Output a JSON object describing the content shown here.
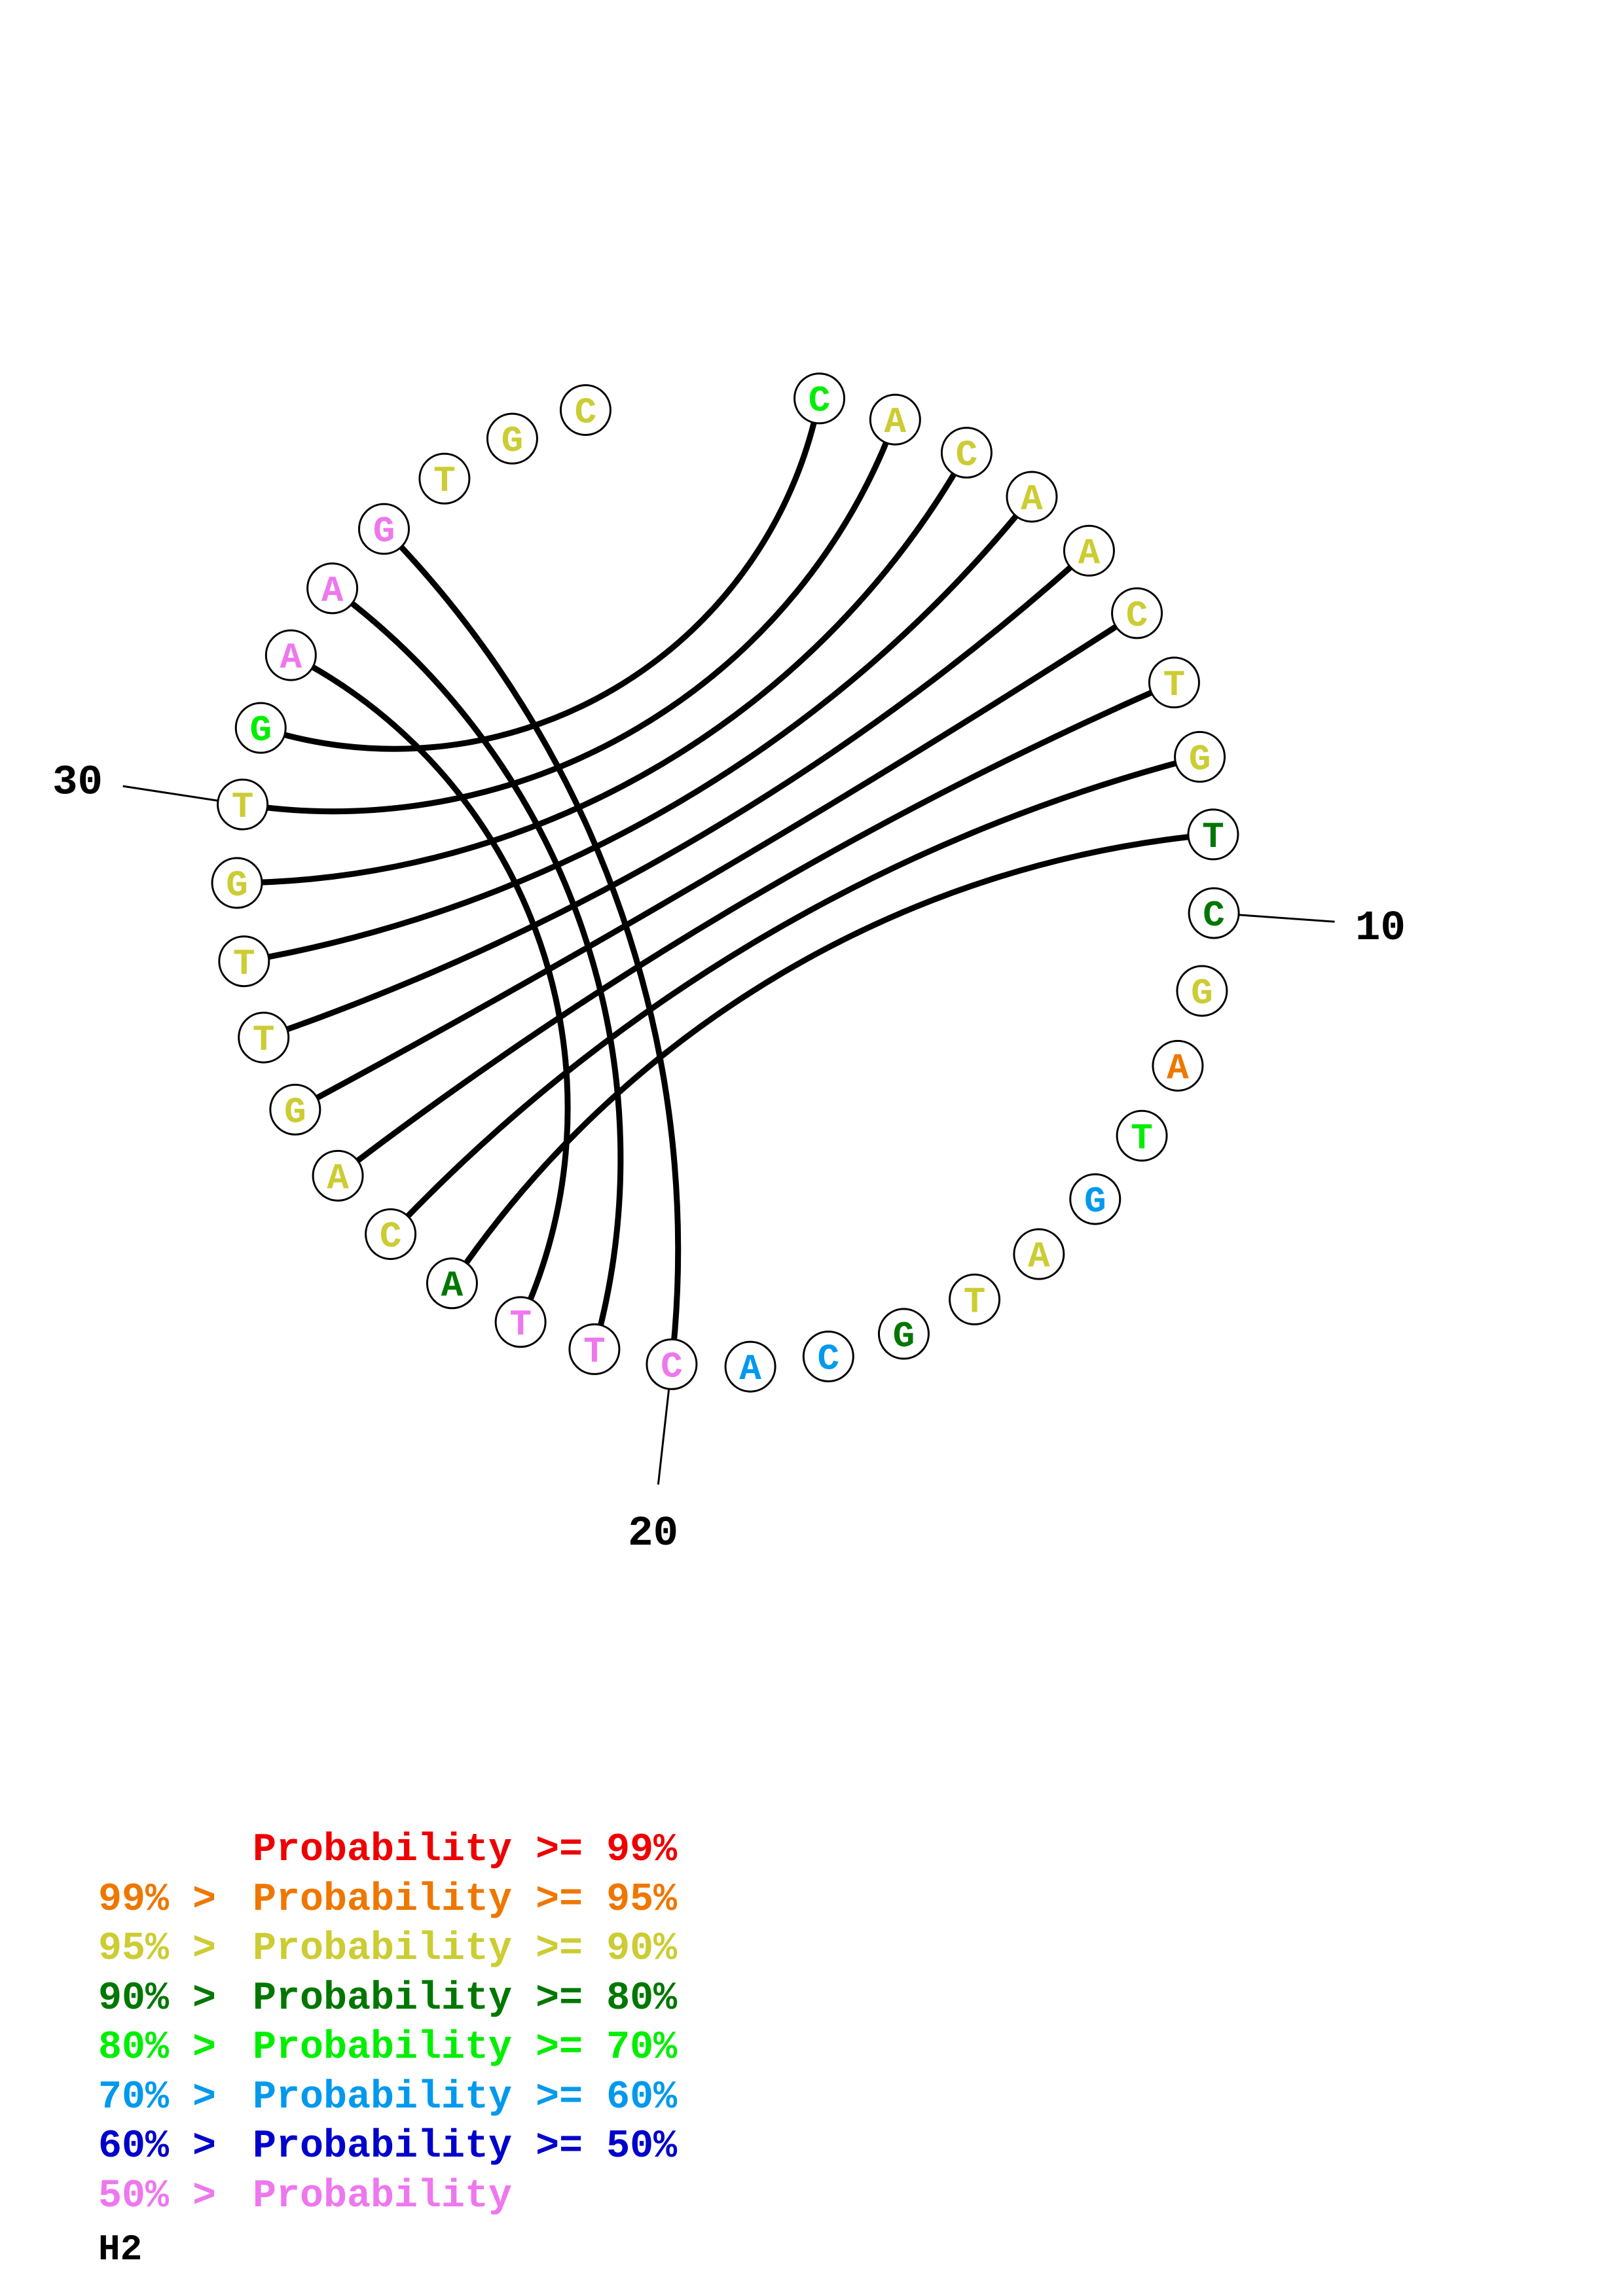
{
  "diagram": {
    "type": "circular-rna-secondary-structure",
    "sequence": [
      {
        "base": "C",
        "color": "#00ee00"
      },
      {
        "base": "A",
        "color": "#cccc33"
      },
      {
        "base": "C",
        "color": "#cccc33"
      },
      {
        "base": "A",
        "color": "#cccc33"
      },
      {
        "base": "A",
        "color": "#cccc33"
      },
      {
        "base": "C",
        "color": "#cccc33"
      },
      {
        "base": "T",
        "color": "#cccc33"
      },
      {
        "base": "G",
        "color": "#cccc33"
      },
      {
        "base": "T",
        "color": "#007700"
      },
      {
        "base": "C",
        "color": "#007700"
      },
      {
        "base": "G",
        "color": "#cccc33"
      },
      {
        "base": "A",
        "color": "#ee7700"
      },
      {
        "base": "T",
        "color": "#00ee00"
      },
      {
        "base": "G",
        "color": "#0099ee"
      },
      {
        "base": "A",
        "color": "#cccc33"
      },
      {
        "base": "T",
        "color": "#cccc33"
      },
      {
        "base": "G",
        "color": "#007700"
      },
      {
        "base": "C",
        "color": "#0099ee"
      },
      {
        "base": "A",
        "color": "#0099ee"
      },
      {
        "base": "C",
        "color": "#ee77ee"
      },
      {
        "base": "T",
        "color": "#ee77ee"
      },
      {
        "base": "T",
        "color": "#ee77ee"
      },
      {
        "base": "A",
        "color": "#007700"
      },
      {
        "base": "C",
        "color": "#cccc33"
      },
      {
        "base": "A",
        "color": "#cccc33"
      },
      {
        "base": "G",
        "color": "#cccc33"
      },
      {
        "base": "T",
        "color": "#cccc33"
      },
      {
        "base": "T",
        "color": "#cccc33"
      },
      {
        "base": "G",
        "color": "#cccc33"
      },
      {
        "base": "T",
        "color": "#cccc33"
      },
      {
        "base": "G",
        "color": "#00ee00"
      },
      {
        "base": "A",
        "color": "#ee77ee"
      },
      {
        "base": "A",
        "color": "#ee77ee"
      },
      {
        "base": "G",
        "color": "#ee77ee"
      },
      {
        "base": "T",
        "color": "#cccc33"
      },
      {
        "base": "G",
        "color": "#cccc33"
      },
      {
        "base": "C",
        "color": "#cccc33"
      }
    ],
    "pairs": [
      [
        1,
        31
      ],
      [
        2,
        30
      ],
      [
        3,
        29
      ],
      [
        4,
        28
      ],
      [
        5,
        27
      ],
      [
        6,
        26
      ],
      [
        7,
        25
      ],
      [
        8,
        24
      ],
      [
        9,
        23
      ],
      [
        20,
        34
      ],
      [
        21,
        33
      ],
      [
        22,
        32
      ]
    ],
    "position_labels": [
      {
        "index": 10,
        "text": "10"
      },
      {
        "index": 20,
        "text": "20"
      },
      {
        "index": 30,
        "text": "30"
      }
    ]
  },
  "legend": [
    {
      "lhs": "",
      "rhs": "Probability >= 99%",
      "color": "#ee0000"
    },
    {
      "lhs": "99% > ",
      "rhs": "Probability >= 95%",
      "color": "#ee7700"
    },
    {
      "lhs": "95% > ",
      "rhs": "Probability >= 90%",
      "color": "#cccc33"
    },
    {
      "lhs": "90% > ",
      "rhs": "Probability >= 80%",
      "color": "#007700"
    },
    {
      "lhs": "80% > ",
      "rhs": "Probability >= 70%",
      "color": "#00ee00"
    },
    {
      "lhs": "70% > ",
      "rhs": "Probability >= 60%",
      "color": "#0099ee"
    },
    {
      "lhs": "60% > ",
      "rhs": "Probability >= 50%",
      "color": "#0000cc"
    },
    {
      "lhs": "50% > ",
      "rhs": "Probability",
      "color": "#ee77ee"
    }
  ],
  "figure_name": "H2"
}
